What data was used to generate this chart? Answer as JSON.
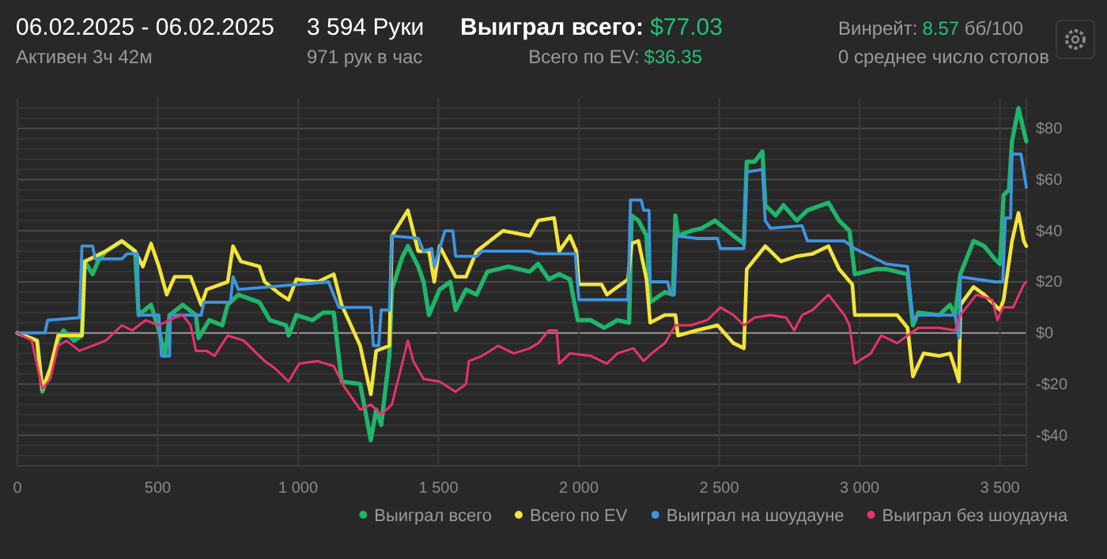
{
  "chart_data": {
    "type": "line",
    "title": "06.02.2025 - 06.02.2025",
    "subtitle": "Активен 3ч 42м",
    "annotations": [
      "3 594 Руки",
      "971 рук в час",
      "Выиграл всего:",
      "$77.03",
      "Всего по EV:",
      "$36.35",
      "Винрейт:",
      "8.57",
      "бб/100",
      "0 среднее число столов"
    ],
    "xlim": [
      0,
      3594
    ],
    "xticks": [
      0,
      500,
      {
        "value": 1000,
        "label": "1 000"
      },
      {
        "value": 1500,
        "label": "1 500"
      },
      {
        "value": 2000,
        "label": "2 000"
      },
      {
        "value": 2500,
        "label": "2 500"
      },
      {
        "value": 3000,
        "label": "3 000"
      },
      {
        "value": 3500,
        "label": "3 500"
      }
    ],
    "ylim": [
      -52,
      92
    ],
    "yticks": [
      {
        "value": -48,
        "label": null
      },
      {
        "value": -44,
        "label": null
      },
      {
        "value": -40,
        "label": "-$40"
      },
      {
        "value": -36,
        "label": null
      },
      {
        "value": -32,
        "label": null
      },
      {
        "value": -28,
        "label": null
      },
      {
        "value": -24,
        "label": null
      },
      {
        "value": -20,
        "label": "-$20"
      },
      {
        "value": -16,
        "label": null
      },
      {
        "value": -12,
        "label": null
      },
      {
        "value": -8,
        "label": null
      },
      {
        "value": -4,
        "label": null
      },
      {
        "value": 0,
        "label": "$0"
      },
      {
        "value": 4,
        "label": null
      },
      {
        "value": 8,
        "label": null
      },
      {
        "value": 12,
        "label": null
      },
      {
        "value": 16,
        "label": null
      },
      {
        "value": 20,
        "label": "$20"
      },
      {
        "value": 24,
        "label": null
      },
      {
        "value": 28,
        "label": null
      },
      {
        "value": 32,
        "label": null
      },
      {
        "value": 36,
        "label": null
      },
      {
        "value": 40,
        "label": "$40"
      },
      {
        "value": 44,
        "label": null
      },
      {
        "value": 48,
        "label": null
      },
      {
        "value": 52,
        "label": null
      },
      {
        "value": 56,
        "label": null
      },
      {
        "value": 60,
        "label": "$60"
      },
      {
        "value": 64,
        "label": null
      },
      {
        "value": 68,
        "label": null
      },
      {
        "value": 72,
        "label": null
      },
      {
        "value": 76,
        "label": null
      },
      {
        "value": 80,
        "label": "$80"
      },
      {
        "value": 84,
        "label": null
      },
      {
        "value": 88,
        "label": null
      }
    ],
    "grid": true,
    "legend": "bottom right",
    "marker": "none",
    "line_style": "solid",
    "series": [
      {
        "name": "Выиграл всего",
        "color": "#1fb56a",
        "x": [
          0,
          70,
          89,
          117,
          145,
          164,
          202,
          230,
          240,
          268,
          287,
          315,
          372,
          419,
          432,
          476,
          504,
          526,
          542,
          589,
          636,
          645,
          683,
          730,
          749,
          787,
          862,
          900,
          957,
          966,
          994,
          1051,
          1089,
          1127,
          1155,
          1221,
          1259,
          1278,
          1296,
          1325,
          1334,
          1372,
          1391,
          1428,
          1447,
          1466,
          1504,
          1542,
          1561,
          1598,
          1636,
          1674,
          1749,
          1825,
          1855,
          1893,
          1930,
          1968,
          1996,
          2043,
          2090,
          2137,
          2179,
          2188,
          2212,
          2241,
          2254,
          2306,
          2335,
          2344,
          2353,
          2400,
          2438,
          2485,
          2551,
          2588,
          2598,
          2626,
          2654,
          2664,
          2701,
          2729,
          2776,
          2814,
          2889,
          2927,
          2964,
          2983,
          3058,
          3096,
          3171,
          3190,
          3209,
          3284,
          3322,
          3340,
          3359,
          3406,
          3444,
          3481,
          3500,
          3513,
          3532,
          3543,
          3566,
          3585,
          3594
        ],
        "values": [
          0,
          -3,
          -23,
          -14,
          -3,
          1,
          -3,
          -1,
          28,
          23,
          28,
          32,
          36,
          32,
          7,
          11,
          1,
          -9,
          7,
          11,
          7,
          -2,
          5,
          3,
          11,
          15,
          12,
          5,
          3,
          -1,
          7,
          5,
          8,
          8,
          -19,
          -20,
          -42,
          -30,
          -36,
          -9,
          17,
          30,
          34,
          26,
          20,
          7,
          17,
          20,
          9,
          17,
          15,
          24,
          26,
          24,
          27,
          21,
          23,
          21,
          5,
          5,
          2,
          5,
          4,
          46,
          44,
          38,
          12,
          16,
          15,
          46,
          38,
          40,
          41,
          44,
          38,
          35,
          67,
          67,
          71,
          50,
          46,
          50,
          44,
          48,
          51,
          44,
          40,
          23,
          25,
          25,
          23,
          3,
          8,
          7,
          11,
          7,
          23,
          36,
          34,
          29,
          27,
          54,
          56,
          75,
          88,
          79,
          75
        ]
      },
      {
        "name": "Всего по EV",
        "color": "#f2e43a",
        "x": [
          0,
          70,
          89,
          117,
          145,
          230,
          240,
          315,
          372,
          419,
          447,
          476,
          504,
          532,
          560,
          617,
          655,
          674,
          749,
          768,
          796,
          862,
          881,
          938,
          966,
          994,
          1070,
          1127,
          1155,
          1221,
          1259,
          1278,
          1325,
          1334,
          1391,
          1428,
          1466,
          1485,
          1504,
          1561,
          1598,
          1636,
          1730,
          1825,
          1855,
          1912,
          1930,
          1968,
          1991,
          2000,
          2081,
          2100,
          2175,
          2188,
          2212,
          2241,
          2254,
          2306,
          2344,
          2353,
          2419,
          2494,
          2551,
          2588,
          2598,
          2664,
          2720,
          2776,
          2833,
          2889,
          2927,
          2974,
          2983,
          3058,
          3134,
          3171,
          3190,
          3228,
          3284,
          3322,
          3340,
          3354,
          3359,
          3406,
          3444,
          3481,
          3500,
          3513,
          3543,
          3566,
          3585,
          3594
        ],
        "values": [
          0,
          -3,
          -22,
          -14,
          -1,
          -1,
          28,
          32,
          36,
          32,
          26,
          35,
          26,
          15,
          22,
          22,
          11,
          17,
          20,
          34,
          28,
          26,
          20,
          15,
          13,
          21,
          20,
          23,
          11,
          -5,
          -24,
          -7,
          -5,
          38,
          48,
          32,
          32,
          20,
          34,
          22,
          22,
          32,
          40,
          38,
          44,
          45,
          32,
          38,
          32,
          19,
          19,
          15,
          21,
          35,
          36,
          21,
          4,
          7,
          7,
          -1,
          1,
          3,
          -4,
          -6,
          25,
          34,
          28,
          30,
          31,
          34,
          25,
          19,
          7,
          7,
          7,
          2,
          -17,
          -8,
          -9,
          -8,
          -14,
          -19,
          11,
          18,
          15,
          11,
          9,
          13,
          36,
          47,
          36,
          34
        ]
      },
      {
        "name": "Выиграл на шоудауне",
        "color": "#3d95e0",
        "x": [
          0,
          98,
          108,
          221,
          230,
          268,
          277,
          372,
          391,
          428,
          432,
          504,
          513,
          542,
          545,
          655,
          664,
          759,
          768,
          787,
          1108,
          1145,
          1259,
          1268,
          1287,
          1296,
          1325,
          1334,
          1428,
          1447,
          1476,
          1485,
          1504,
          1523,
          1551,
          1561,
          1636,
          1655,
          1825,
          1855,
          1987,
          2000,
          2175,
          2184,
          2222,
          2231,
          2250,
          2254,
          2316,
          2325,
          2340,
          2348,
          2419,
          2494,
          2504,
          2588,
          2598,
          2654,
          2664,
          2682,
          2795,
          2814,
          2946,
          2983,
          3040,
          3096,
          3171,
          3190,
          3209,
          3340,
          3354,
          3359,
          3481,
          3510,
          3519,
          3538,
          3543,
          3575,
          3594
        ],
        "values": [
          0,
          0,
          5,
          6,
          34,
          34,
          29,
          29,
          31,
          31,
          7,
          7,
          -9,
          -9,
          7,
          7,
          12,
          12,
          22,
          17,
          20,
          10,
          10,
          -5,
          -5,
          9,
          9,
          38,
          37,
          32,
          33,
          26,
          33,
          40,
          40,
          30,
          30,
          32,
          32,
          31,
          31,
          13,
          13,
          52,
          52,
          48,
          48,
          20,
          20,
          16,
          15,
          38,
          37,
          37,
          33,
          33,
          63,
          64,
          44,
          41,
          42,
          36,
          36,
          33,
          30,
          27,
          26,
          5,
          7,
          7,
          -2,
          22,
          20,
          20,
          45,
          45,
          70,
          70,
          57
        ]
      },
      {
        "name": "Выиграл без шоудауна",
        "color": "#e8336d",
        "x": [
          0,
          51,
          89,
          117,
          145,
          174,
          221,
          268,
          315,
          372,
          409,
          457,
          504,
          560,
          589,
          617,
          636,
          674,
          702,
          749,
          806,
          881,
          919,
          966,
          1004,
          1070,
          1127,
          1164,
          1221,
          1259,
          1296,
          1334,
          1391,
          1410,
          1447,
          1504,
          1561,
          1598,
          1608,
          1655,
          1712,
          1768,
          1825,
          1855,
          1893,
          1921,
          1930,
          1968,
          2043,
          2100,
          2137,
          2194,
          2231,
          2259,
          2306,
          2344,
          2400,
          2457,
          2504,
          2551,
          2588,
          2626,
          2682,
          2739,
          2767,
          2795,
          2833,
          2889,
          2946,
          2964,
          2983,
          3040,
          3077,
          3134,
          3171,
          3209,
          3284,
          3340,
          3359,
          3416,
          3472,
          3491,
          3510,
          3547,
          3585,
          3594
        ],
        "values": [
          0,
          -3,
          -22,
          -18,
          -5,
          -3,
          -7,
          -5,
          -3,
          3,
          1,
          5,
          3,
          6,
          7,
          3,
          -7,
          -7,
          -9,
          -1,
          -3,
          -11,
          -14,
          -19,
          -12,
          -11,
          -13,
          -21,
          -30,
          -28,
          -32,
          -28,
          -3,
          -11,
          -18,
          -19,
          -23,
          -20,
          -11,
          -9,
          -5,
          -8,
          -6,
          -4,
          1,
          1,
          -12,
          -8,
          -9,
          -12,
          -8,
          -6,
          -11,
          -8,
          -4,
          3,
          3,
          5,
          10,
          7,
          3,
          6,
          7,
          6,
          1,
          7,
          9,
          15,
          7,
          3,
          -12,
          -8,
          -1,
          -4,
          -1,
          2,
          2,
          1,
          7,
          15,
          13,
          5,
          10,
          10,
          19,
          20
        ]
      }
    ]
  }
}
